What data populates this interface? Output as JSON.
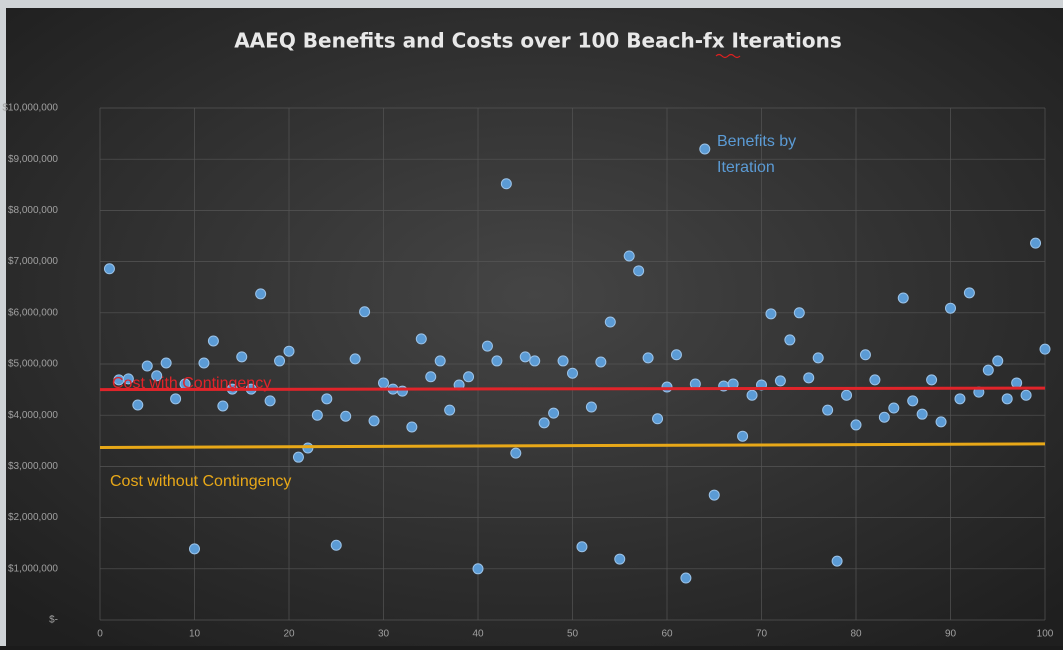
{
  "chart_data": {
    "type": "scatter",
    "title": "AAEQ Benefits and Costs over 100 Beach-fx Iterations",
    "xlim": [
      0,
      100
    ],
    "xticks": [
      0,
      10,
      20,
      30,
      40,
      50,
      60,
      70,
      80,
      90,
      100
    ],
    "ylim": [
      0,
      10000000
    ],
    "yticks": [
      {
        "value": 0,
        "label": "$-"
      },
      {
        "value": 1000000,
        "label": "$1,000,000"
      },
      {
        "value": 2000000,
        "label": "$2,000,000"
      },
      {
        "value": 3000000,
        "label": "$3,000,000"
      },
      {
        "value": 4000000,
        "label": "$4,000,000"
      },
      {
        "value": 5000000,
        "label": "$5,000,000"
      },
      {
        "value": 6000000,
        "label": "$6,000,000"
      },
      {
        "value": 7000000,
        "label": "$7,000,000"
      },
      {
        "value": 8000000,
        "label": "$8,000,000"
      },
      {
        "value": 9000000,
        "label": "$9,000,000"
      },
      {
        "value": 10000000,
        "label": "$10,000,000"
      }
    ],
    "grid": true,
    "series": [
      {
        "name": "Benefits by Iteration",
        "type": "scatter",
        "color": "#5b9bd5",
        "x": [
          1,
          2,
          3,
          4,
          5,
          6,
          7,
          8,
          9,
          10,
          11,
          12,
          13,
          14,
          15,
          16,
          17,
          18,
          19,
          20,
          21,
          22,
          23,
          24,
          25,
          26,
          27,
          28,
          29,
          30,
          31,
          32,
          33,
          34,
          35,
          36,
          37,
          38,
          39,
          40,
          41,
          42,
          43,
          44,
          45,
          46,
          47,
          48,
          49,
          50,
          51,
          52,
          53,
          54,
          55,
          56,
          57,
          58,
          59,
          60,
          61,
          62,
          63,
          64,
          65,
          66,
          67,
          68,
          69,
          70,
          71,
          72,
          73,
          74,
          75,
          76,
          77,
          78,
          79,
          80,
          81,
          82,
          83,
          84,
          85,
          86,
          87,
          88,
          89,
          90,
          91,
          92,
          93,
          94,
          95,
          96,
          97,
          98,
          99,
          100
        ],
        "values": [
          6860000,
          4690000,
          4710000,
          4200000,
          4960000,
          4770000,
          5020000,
          4320000,
          4610000,
          1390000,
          5020000,
          5450000,
          4180000,
          4510000,
          5140000,
          4510000,
          6370000,
          4280000,
          5060000,
          5250000,
          3180000,
          3360000,
          4000000,
          4320000,
          1460000,
          3980000,
          5100000,
          6020000,
          3890000,
          4630000,
          4510000,
          4470000,
          3770000,
          5490000,
          4750000,
          5060000,
          4100000,
          4590000,
          4750000,
          1000000,
          5350000,
          5060000,
          8520000,
          3260000,
          5140000,
          5060000,
          3850000,
          4040000,
          5060000,
          4820000,
          1430000,
          4160000,
          5040000,
          5820000,
          1190000,
          7110000,
          6820000,
          5120000,
          3930000,
          4550000,
          5180000,
          820000,
          4610000,
          9200000,
          2440000,
          4570000,
          4610000,
          3590000,
          4390000,
          4590000,
          5980000,
          4670000,
          5470000,
          6000000,
          4730000,
          5120000,
          4100000,
          1150000,
          4390000,
          3810000,
          5180000,
          4690000,
          3960000,
          4140000,
          6290000,
          4280000,
          4020000,
          4690000,
          3870000,
          6090000,
          4320000,
          6390000,
          4450000,
          4880000,
          5060000,
          4320000,
          4630000,
          4390000,
          7360000,
          5290000
        ]
      },
      {
        "name": "Cost with Contingency",
        "type": "line",
        "color": "#e0242a",
        "x": [
          0,
          100
        ],
        "values": [
          4500000,
          4530000
        ]
      },
      {
        "name": "Cost without Contingency",
        "type": "line",
        "color": "#e8a818",
        "x": [
          0,
          100
        ],
        "values": [
          3370000,
          3440000
        ]
      }
    ]
  }
}
